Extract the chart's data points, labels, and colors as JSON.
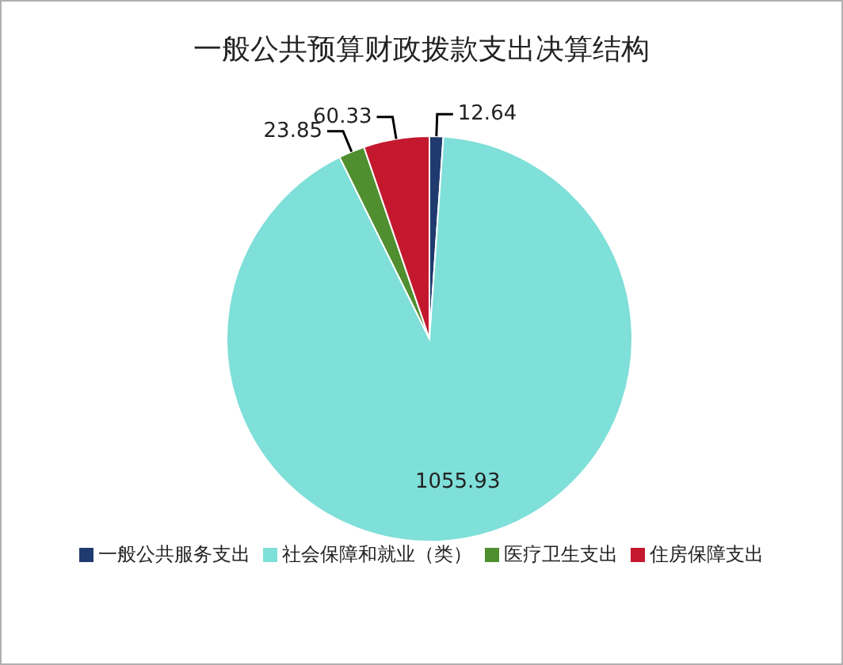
{
  "chart_data": {
    "type": "pie",
    "title": "一般公共预算财政拨款支出决算结构",
    "categories": [
      "一般公共服务支出",
      "社会保障和就业（类）",
      "医疗卫生支出",
      "住房保障支出"
    ],
    "values": [
      12.64,
      1055.93,
      23.85,
      60.33
    ],
    "colors": [
      "#1f3a6e",
      "#7fdfd9",
      "#4f8f2f",
      "#c4182f"
    ],
    "data_labels": true,
    "legend": "bottom"
  }
}
